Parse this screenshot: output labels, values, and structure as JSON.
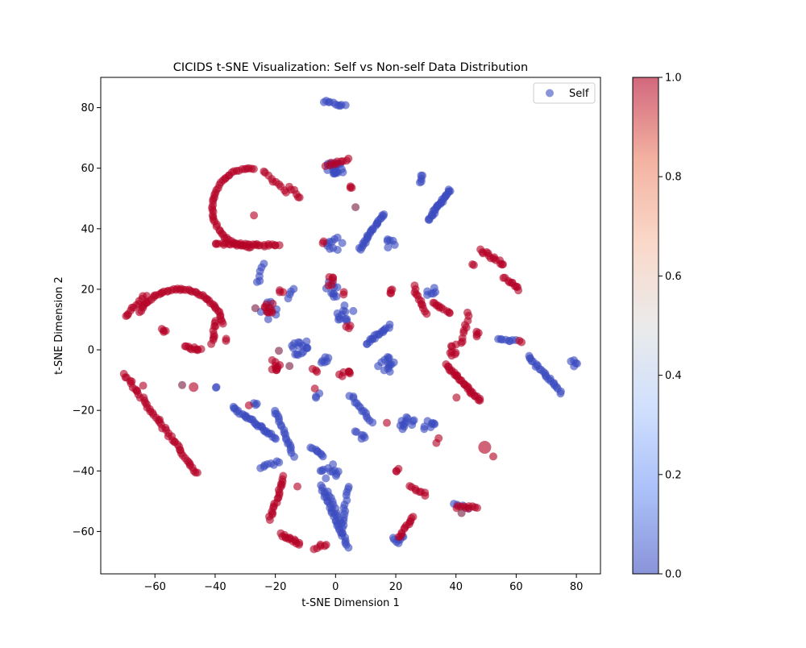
{
  "chart_data": {
    "type": "scatter",
    "title": "CICIDS t-SNE Visualization: Self vs Non-self Data Distribution",
    "xlabel": "t-SNE Dimension 1",
    "ylabel": "t-SNE Dimension 2",
    "xlim": [
      -78,
      88
    ],
    "ylim": [
      -74,
      90
    ],
    "x_ticks": [
      -60,
      -40,
      -20,
      0,
      20,
      40,
      60,
      80
    ],
    "y_ticks": [
      -60,
      -40,
      -20,
      0,
      20,
      40,
      60,
      80
    ],
    "legend": {
      "label": "Self",
      "position": "top-right",
      "color": "#3b4cc0"
    },
    "colorbar": {
      "min": 0.0,
      "max": 1.0,
      "ticks": [
        "0.0",
        "0.2",
        "0.4",
        "0.6",
        "0.8",
        "1.0"
      ],
      "colormap": "coolwarm",
      "colors": [
        "#3b4cc0",
        "#7396f5",
        "#b0cbfc",
        "#dddddd",
        "#f6bfa6",
        "#ec7f63",
        "#b40426"
      ]
    },
    "colors": {
      "self": "#3b4cc0",
      "nonself": "#b40426",
      "mixed": "#7a2046"
    },
    "series": [
      {
        "name": "Self",
        "label_value": 0,
        "clusters": [
          {
            "kind": "line",
            "from": [
              -4,
              82
            ],
            "to": [
              3,
              80.5
            ],
            "n": 10
          },
          {
            "kind": "blob",
            "x": 0,
            "y": 60,
            "r": 3,
            "n": 22
          },
          {
            "kind": "blob",
            "x": 0,
            "y": 35,
            "r": 3,
            "n": 10
          },
          {
            "kind": "line",
            "from": [
              8,
              33
            ],
            "to": [
              16,
              45
            ],
            "n": 26
          },
          {
            "kind": "blob",
            "x": 18,
            "y": 35,
            "r": 2,
            "n": 6
          },
          {
            "kind": "line",
            "from": [
              28,
              55
            ],
            "to": [
              29,
              58
            ],
            "n": 5
          },
          {
            "kind": "line",
            "from": [
              31,
              43
            ],
            "to": [
              38,
              53
            ],
            "n": 28
          },
          {
            "kind": "line",
            "from": [
              -26,
              22
            ],
            "to": [
              -24,
              28
            ],
            "n": 6
          },
          {
            "kind": "line",
            "from": [
              -16,
              17
            ],
            "to": [
              -14,
              20
            ],
            "n": 4
          },
          {
            "kind": "blob",
            "x": -22,
            "y": 13,
            "r": 3,
            "n": 8
          },
          {
            "kind": "blob",
            "x": -1,
            "y": 20,
            "r": 3,
            "n": 10
          },
          {
            "kind": "blob",
            "x": 3,
            "y": 12,
            "r": 3,
            "n": 12
          },
          {
            "kind": "blob",
            "x": -12,
            "y": 1,
            "r": 3,
            "n": 16
          },
          {
            "kind": "blob",
            "x": -4,
            "y": -3,
            "r": 2,
            "n": 6
          },
          {
            "kind": "line",
            "from": [
              10,
              2
            ],
            "to": [
              18,
              8
            ],
            "n": 18
          },
          {
            "kind": "blob",
            "x": 17,
            "y": -5,
            "r": 3,
            "n": 14
          },
          {
            "kind": "line",
            "from": [
              5,
              -15
            ],
            "to": [
              12,
              -24
            ],
            "n": 14
          },
          {
            "kind": "blob",
            "x": 8,
            "y": -28,
            "r": 2,
            "n": 6
          },
          {
            "kind": "line",
            "from": [
              -34,
              -19
            ],
            "to": [
              -20,
              -29
            ],
            "n": 30
          },
          {
            "kind": "line",
            "from": [
              -20,
              -20
            ],
            "to": [
              -14,
              -35
            ],
            "n": 20
          },
          {
            "kind": "line",
            "from": [
              -25,
              -39
            ],
            "to": [
              -19,
              -37
            ],
            "n": 8
          },
          {
            "kind": "line",
            "from": [
              -8,
              -32
            ],
            "to": [
              -4,
              -35
            ],
            "n": 8
          },
          {
            "kind": "blob",
            "x": -2,
            "y": -40,
            "r": 3,
            "n": 12
          },
          {
            "kind": "line",
            "from": [
              -5,
              -45
            ],
            "to": [
              4,
              -65
            ],
            "n": 30
          },
          {
            "kind": "line",
            "from": [
              4,
              -45
            ],
            "to": [
              2,
              -60
            ],
            "n": 14
          },
          {
            "kind": "line",
            "from": [
              -3,
              -47
            ],
            "to": [
              2,
              -57
            ],
            "n": 10
          },
          {
            "kind": "blob",
            "x": 24,
            "y": -25,
            "r": 3,
            "n": 12
          },
          {
            "kind": "blob",
            "x": 31,
            "y": -25,
            "r": 2,
            "n": 8
          },
          {
            "kind": "blob",
            "x": 32,
            "y": 19,
            "r": 2,
            "n": 6
          },
          {
            "kind": "blob",
            "x": 21,
            "y": -62,
            "r": 2,
            "n": 8
          },
          {
            "kind": "line",
            "from": [
              54,
              4
            ],
            "to": [
              60,
              3
            ],
            "n": 8
          },
          {
            "kind": "line",
            "from": [
              64,
              -2
            ],
            "to": [
              75,
              -14
            ],
            "n": 24
          },
          {
            "kind": "blob",
            "x": 79,
            "y": -4,
            "r": 1.5,
            "n": 5
          },
          {
            "kind": "line",
            "from": [
              39,
              -51
            ],
            "to": [
              44,
              -52
            ],
            "n": 4
          },
          {
            "kind": "blob",
            "x": -39,
            "y": -12,
            "r": 1,
            "n": 2
          },
          {
            "kind": "blob",
            "x": -27,
            "y": -18,
            "r": 1,
            "n": 3
          },
          {
            "kind": "blob",
            "x": -6,
            "y": -15,
            "r": 1,
            "n": 3
          }
        ]
      },
      {
        "name": "",
        "label_value": 1,
        "clusters": [
          {
            "kind": "arc",
            "cx": -28,
            "cy": 47,
            "r": 13,
            "a0": 85,
            "a1": 270,
            "n": 50
          },
          {
            "kind": "line",
            "from": [
              -40,
              35
            ],
            "to": [
              -19,
              34.5
            ],
            "n": 30
          },
          {
            "kind": "line",
            "from": [
              -24,
              59
            ],
            "to": [
              -16,
              52
            ],
            "n": 10
          },
          {
            "kind": "line",
            "from": [
              -15,
              54
            ],
            "to": [
              -12,
              50
            ],
            "n": 6
          },
          {
            "kind": "blob",
            "x": -27,
            "y": 44,
            "r": 0.5,
            "n": 1
          },
          {
            "kind": "arc",
            "cx": -52,
            "cy": 5,
            "r": 15,
            "a0": 15,
            "a1": 150,
            "n": 50
          },
          {
            "kind": "line",
            "from": [
              -70,
              11
            ],
            "to": [
              -63,
              18
            ],
            "n": 12
          },
          {
            "kind": "line",
            "from": [
              -40,
              10
            ],
            "to": [
              -41,
              2
            ],
            "n": 10
          },
          {
            "kind": "line",
            "from": [
              -50,
              1
            ],
            "to": [
              -45,
              0
            ],
            "n": 10
          },
          {
            "kind": "line",
            "from": [
              -58,
              7
            ],
            "to": [
              -56,
              6
            ],
            "n": 4
          },
          {
            "kind": "line",
            "from": [
              -70,
              -8
            ],
            "to": [
              -46,
              -41
            ],
            "n": 50
          },
          {
            "kind": "blob",
            "x": -64,
            "y": -12,
            "r": 0.5,
            "n": 1
          },
          {
            "kind": "blob",
            "x": -47,
            "y": -12,
            "r": 0.5,
            "n": 1,
            "size": 6
          },
          {
            "kind": "blob",
            "x": -37,
            "y": 3,
            "r": 1,
            "n": 2
          },
          {
            "kind": "line",
            "from": [
              -3,
              61
            ],
            "to": [
              4,
              63
            ],
            "n": 10
          },
          {
            "kind": "blob",
            "x": 5,
            "y": 54,
            "r": 1,
            "n": 3
          },
          {
            "kind": "blob",
            "x": -4,
            "y": 36,
            "r": 1,
            "n": 2
          },
          {
            "kind": "blob",
            "x": -22,
            "y": 14,
            "r": 2,
            "n": 10
          },
          {
            "kind": "blob",
            "x": -20,
            "y": -5,
            "r": 2,
            "n": 10
          },
          {
            "kind": "blob",
            "x": -7,
            "y": -7,
            "r": 1,
            "n": 3
          },
          {
            "kind": "blob",
            "x": -18,
            "y": 19,
            "r": 1,
            "n": 3
          },
          {
            "kind": "blob",
            "x": -2,
            "y": 23,
            "r": 2,
            "n": 6
          },
          {
            "kind": "blob",
            "x": 3,
            "y": 19,
            "r": 1,
            "n": 2
          },
          {
            "kind": "blob",
            "x": 4,
            "y": 8,
            "r": 1,
            "n": 3
          },
          {
            "kind": "blob",
            "x": 5,
            "y": -7,
            "r": 1,
            "n": 4
          },
          {
            "kind": "blob",
            "x": 19,
            "y": 19,
            "r": 1,
            "n": 4
          },
          {
            "kind": "line",
            "from": [
              26,
              21
            ],
            "to": [
              30,
              12
            ],
            "n": 12
          },
          {
            "kind": "line",
            "from": [
              32,
              16
            ],
            "to": [
              38,
              12
            ],
            "n": 10
          },
          {
            "kind": "line",
            "from": [
              42,
              2
            ],
            "to": [
              44,
              12
            ],
            "n": 10
          },
          {
            "kind": "line",
            "from": [
              37,
              -5
            ],
            "to": [
              48,
              -17
            ],
            "n": 30
          },
          {
            "kind": "blob",
            "x": 39,
            "y": 0,
            "r": 2,
            "n": 8
          },
          {
            "kind": "line",
            "from": [
              48,
              33
            ],
            "to": [
              56,
              28
            ],
            "n": 14
          },
          {
            "kind": "line",
            "from": [
              56,
              24
            ],
            "to": [
              61,
              20
            ],
            "n": 10
          },
          {
            "kind": "blob",
            "x": 47,
            "y": 5,
            "r": 1,
            "n": 4
          },
          {
            "kind": "blob",
            "x": 61,
            "y": 3,
            "r": 1,
            "n": 2
          },
          {
            "kind": "blob",
            "x": 46,
            "y": 28,
            "r": 1,
            "n": 2
          },
          {
            "kind": "line",
            "from": [
              -17,
              -42
            ],
            "to": [
              -22,
              -56
            ],
            "n": 20
          },
          {
            "kind": "blob",
            "x": -13,
            "y": -45,
            "r": 0.5,
            "n": 1
          },
          {
            "kind": "line",
            "from": [
              -18,
              -61
            ],
            "to": [
              -12,
              -64
            ],
            "n": 14
          },
          {
            "kind": "line",
            "from": [
              -7,
              -66
            ],
            "to": [
              -3,
              -64
            ],
            "n": 6
          },
          {
            "kind": "line",
            "from": [
              21,
              -62
            ],
            "to": [
              26,
              -55
            ],
            "n": 12
          },
          {
            "kind": "line",
            "from": [
              25,
              -45
            ],
            "to": [
              30,
              -48
            ],
            "n": 8
          },
          {
            "kind": "line",
            "from": [
              40,
              -52
            ],
            "to": [
              47,
              -52
            ],
            "n": 10
          },
          {
            "kind": "blob",
            "x": 50,
            "y": -32,
            "r": 0.5,
            "n": 1,
            "size": 8
          },
          {
            "kind": "blob",
            "x": 52,
            "y": -35,
            "r": 0.5,
            "n": 1
          },
          {
            "kind": "blob",
            "x": 34,
            "y": -30,
            "r": 1,
            "n": 2
          },
          {
            "kind": "blob",
            "x": 21,
            "y": -40,
            "r": 1,
            "n": 3
          },
          {
            "kind": "blob",
            "x": 17,
            "y": -24,
            "r": 0.5,
            "n": 1
          },
          {
            "kind": "blob",
            "x": 2,
            "y": -8,
            "r": 1,
            "n": 3
          },
          {
            "kind": "blob",
            "x": -7,
            "y": -13,
            "r": 0.5,
            "n": 1
          },
          {
            "kind": "blob",
            "x": 40,
            "y": -16,
            "r": 0.5,
            "n": 1
          },
          {
            "kind": "blob",
            "x": -29,
            "y": -18,
            "r": 0.5,
            "n": 1
          }
        ]
      },
      {
        "name": "",
        "label_value": 0.75,
        "clusters": [
          {
            "kind": "blob",
            "x": -15,
            "y": -5,
            "r": 0.5,
            "n": 1
          },
          {
            "kind": "blob",
            "x": -19,
            "y": 0,
            "r": 0.5,
            "n": 1
          },
          {
            "kind": "blob",
            "x": 7,
            "y": 47,
            "r": 0.5,
            "n": 1
          },
          {
            "kind": "blob",
            "x": -51,
            "y": -12,
            "r": 0.5,
            "n": 1
          },
          {
            "kind": "blob",
            "x": -27,
            "y": 14,
            "r": 0.5,
            "n": 1
          },
          {
            "kind": "blob",
            "x": 42,
            "y": -54,
            "r": 0.5,
            "n": 1
          }
        ]
      }
    ]
  }
}
